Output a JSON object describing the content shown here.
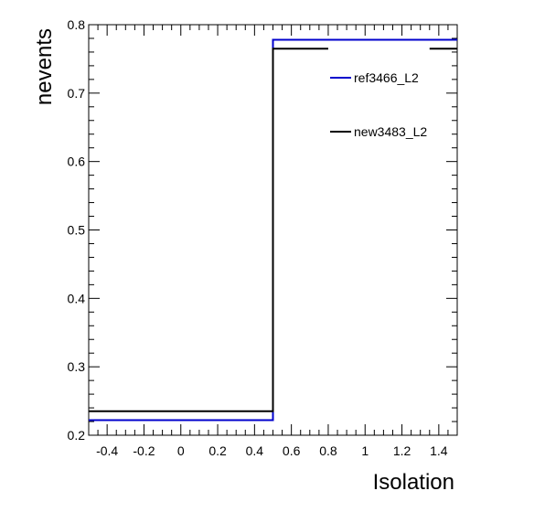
{
  "chart_data": {
    "type": "line",
    "style": "step-histogram",
    "xlabel": "Isolation",
    "ylabel": "nevents",
    "xlim": [
      -0.5,
      1.5
    ],
    "ylim": [
      0.2,
      0.8
    ],
    "x_ticks": [
      -0.4,
      -0.2,
      0,
      0.2,
      0.4,
      0.6,
      0.8,
      1,
      1.2,
      1.4
    ],
    "x_tick_labels": [
      "-0.4",
      "-0.2",
      "0",
      "0.2",
      "0.4",
      "0.6",
      "0.8",
      "1",
      "1.2",
      "1.4"
    ],
    "y_ticks": [
      0.2,
      0.3,
      0.4,
      0.5,
      0.6,
      0.7,
      0.8
    ],
    "y_tick_labels": [
      "0.2",
      "0.3",
      "0.4",
      "0.5",
      "0.6",
      "0.7",
      "0.8"
    ],
    "grid": false,
    "legend_position": "top-right",
    "series": [
      {
        "name": "ref3466_L2",
        "color": "#0000cc",
        "bins": [
          [
            -0.5,
            0.5,
            0.222
          ],
          [
            0.5,
            1.5,
            0.778
          ]
        ]
      },
      {
        "name": "new3483_L2",
        "color": "#000000",
        "bins": [
          [
            -0.5,
            0.5,
            0.235
          ],
          [
            0.5,
            0.8,
            0.765
          ],
          [
            1.35,
            1.5,
            0.765
          ]
        ]
      }
    ]
  }
}
